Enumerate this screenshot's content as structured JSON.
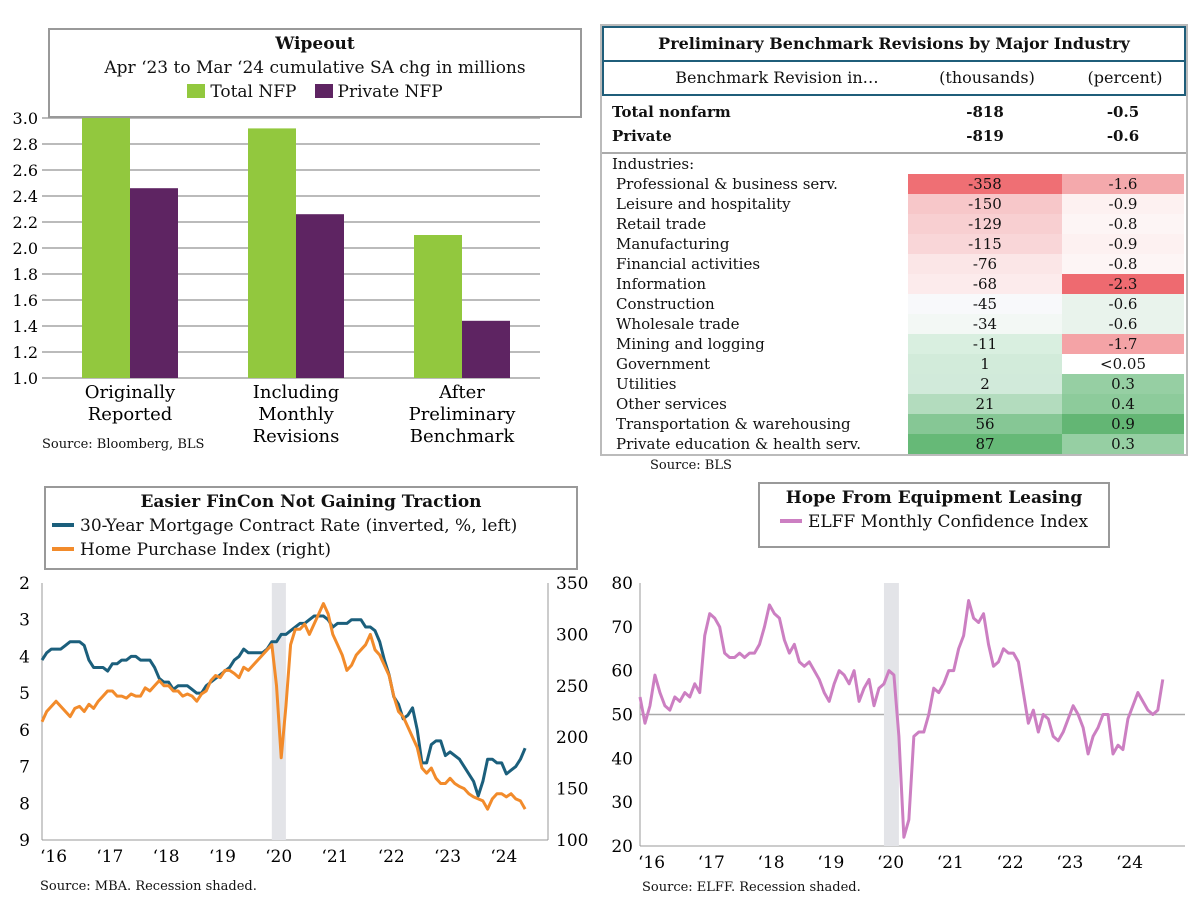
{
  "chart_data": [
    {
      "type": "bar",
      "title": "Wipeout",
      "subtitle": "Apr ‘23 to Mar ‘24 cumulative SA chg in millions",
      "categories": [
        "Originally Reported",
        "Including Monthly Revisions",
        "After Preliminary Benchmark"
      ],
      "series": [
        {
          "name": "Total NFP",
          "color": "#92c83e",
          "values": [
            3.0,
            2.92,
            2.1
          ]
        },
        {
          "name": "Private NFP",
          "color": "#5e2462",
          "values": [
            2.46,
            2.26,
            1.44
          ]
        }
      ],
      "ylim": [
        1.0,
        3.0
      ],
      "yticks": [
        "1.0",
        "1.2",
        "1.4",
        "1.6",
        "1.8",
        "2.0",
        "2.2",
        "2.4",
        "2.6",
        "2.8",
        "3.0"
      ],
      "grid": true,
      "source": "Source: Bloomberg, BLS"
    },
    {
      "type": "table",
      "title": "Preliminary Benchmark Revisions by Major Industry",
      "columns": [
        "Benchmark Revision in…",
        "(thousands)",
        "(percent)"
      ],
      "totals": [
        [
          "Total nonfarm",
          "-818",
          "-0.5"
        ],
        [
          "Private",
          "-819",
          "-0.6"
        ]
      ],
      "section": "Industries:",
      "rows": [
        [
          "Professional & business serv.",
          "-358",
          "-1.6",
          "#ef6f74",
          "#f4a9ac"
        ],
        [
          "Leisure and hospitality",
          "-150",
          "-0.9",
          "#f7c7c9",
          "#fdf1f1"
        ],
        [
          "Retail trade",
          "-129",
          "-0.8",
          "#f8cfd1",
          "#fdf5f5"
        ],
        [
          "Manufacturing",
          "-115",
          "-0.9",
          "#f9d6d8",
          "#fdf1f1"
        ],
        [
          "Financial activities",
          "-76",
          "-0.8",
          "#fbe6e7",
          "#fdf5f5"
        ],
        [
          "Information",
          "-68",
          "-2.3",
          "#fcebec",
          "#ee6a70"
        ],
        [
          "Construction",
          "-45",
          "-0.6",
          "#f8f9fb",
          "#e9f3ec"
        ],
        [
          "Wholesale trade",
          "-34",
          "-0.6",
          "#f3f8f5",
          "#e9f3ec"
        ],
        [
          "Mining and logging",
          "-11",
          "-1.7",
          "#d9efe0",
          "#f4a3a6"
        ],
        [
          "Government",
          "1",
          "<0.05",
          "#d2ebda",
          "#ffffff"
        ],
        [
          "Utilities",
          "2",
          "0.3",
          "#d1eada",
          "#96cfa3"
        ],
        [
          "Other services",
          "21",
          "0.4",
          "#b3dcbe",
          "#8dcb9b"
        ],
        [
          "Transportation & warehousing",
          "56",
          "0.9",
          "#86c795",
          "#63b674"
        ],
        [
          "Private education & health serv.",
          "87",
          "0.3",
          "#66b977",
          "#96cfa3"
        ]
      ],
      "source": "Source: BLS"
    },
    {
      "type": "line",
      "title": "Easier FinCon Not Gaining Traction",
      "start": "2016-01",
      "series": [
        {
          "name": "30-Year Mortgage Contract Rate (inverted, %, left)",
          "color": "#1b5f7c",
          "axis": "left",
          "values": [
            4.1,
            3.9,
            3.8,
            3.8,
            3.8,
            3.7,
            3.6,
            3.6,
            3.6,
            3.7,
            4.1,
            4.3,
            4.3,
            4.3,
            4.4,
            4.2,
            4.2,
            4.1,
            4.1,
            4.0,
            4.0,
            4.1,
            4.1,
            4.1,
            4.3,
            4.6,
            4.7,
            4.7,
            4.9,
            4.8,
            4.8,
            4.8,
            4.9,
            5.0,
            5.0,
            4.8,
            4.7,
            4.6,
            4.5,
            4.4,
            4.3,
            4.1,
            4.0,
            3.8,
            3.9,
            3.9,
            3.9,
            3.9,
            3.8,
            3.6,
            3.6,
            3.4,
            3.4,
            3.3,
            3.2,
            3.1,
            3.1,
            3.0,
            2.9,
            2.9,
            2.9,
            3.0,
            3.2,
            3.1,
            3.1,
            3.1,
            3.0,
            3.0,
            3.0,
            3.2,
            3.2,
            3.3,
            3.6,
            4.1,
            4.5,
            5.1,
            5.3,
            5.7,
            5.6,
            5.4,
            6.0,
            6.9,
            6.9,
            6.4,
            6.3,
            6.3,
            6.7,
            6.6,
            6.7,
            6.8,
            7.0,
            7.2,
            7.4,
            7.8,
            7.4,
            6.8,
            6.8,
            6.9,
            6.9,
            7.2,
            7.1,
            7.0,
            6.8,
            6.5
          ]
        },
        {
          "name": "Home Purchase Index (right)",
          "color": "#f28b2b",
          "axis": "right",
          "values": [
            215,
            225,
            230,
            235,
            230,
            225,
            220,
            228,
            230,
            225,
            232,
            228,
            235,
            240,
            245,
            245,
            240,
            240,
            238,
            242,
            240,
            240,
            248,
            245,
            250,
            255,
            250,
            250,
            245,
            245,
            240,
            242,
            240,
            235,
            242,
            245,
            255,
            260,
            258,
            265,
            265,
            262,
            258,
            268,
            265,
            270,
            275,
            280,
            285,
            290,
            250,
            180,
            230,
            290,
            305,
            305,
            310,
            300,
            310,
            320,
            330,
            320,
            300,
            290,
            280,
            265,
            270,
            280,
            285,
            290,
            300,
            285,
            280,
            270,
            260,
            240,
            225,
            220,
            210,
            200,
            190,
            170,
            165,
            170,
            160,
            155,
            155,
            160,
            155,
            152,
            150,
            145,
            142,
            140,
            138,
            130,
            140,
            145,
            145,
            142,
            145,
            140,
            138,
            130
          ]
        }
      ],
      "left_ylim": [
        2,
        9
      ],
      "left_ticks": [
        "2",
        "3",
        "4",
        "5",
        "6",
        "7",
        "8",
        "9"
      ],
      "right_ylim": [
        100,
        350
      ],
      "right_ticks": [
        "350",
        "300",
        "250",
        "200",
        "150",
        "100"
      ],
      "xticks": [
        "‘16",
        "‘17",
        "‘18",
        "‘19",
        "‘20",
        "‘21",
        "‘22",
        "‘23",
        "‘24"
      ],
      "recession": [
        "2020-02",
        "2020-04"
      ],
      "source": "Source: MBA. Recession shaded."
    },
    {
      "type": "line",
      "title": "Hope From Equipment Leasing",
      "start": "2016-01",
      "series": [
        {
          "name": "ELFF Monthly Confidence Index",
          "color": "#cc7fc2",
          "values": [
            54,
            48,
            52,
            59,
            55,
            52,
            51,
            54,
            53,
            55,
            54,
            57,
            55,
            68,
            73,
            72,
            70,
            64,
            63,
            63,
            64,
            63,
            64,
            64,
            66,
            70,
            75,
            73,
            72,
            67,
            64,
            66,
            62,
            61,
            62,
            60,
            58,
            55,
            53,
            57,
            60,
            59,
            57,
            60,
            53,
            56,
            58,
            52,
            56,
            57,
            60,
            59,
            45,
            22,
            26,
            45,
            46,
            46,
            50,
            56,
            55,
            57,
            60,
            60,
            65,
            68,
            76,
            72,
            71,
            73,
            66,
            61,
            62,
            65,
            64,
            64,
            62,
            55,
            48,
            51,
            46,
            50,
            49,
            45,
            44,
            46,
            49,
            52,
            50,
            47,
            41,
            45,
            47,
            50,
            50,
            41,
            43,
            42,
            49,
            52,
            55,
            53,
            51,
            50,
            51,
            58
          ]
        }
      ],
      "ylim": [
        20,
        80
      ],
      "yticks": [
        "20",
        "30",
        "40",
        "50",
        "60",
        "70",
        "80"
      ],
      "refline": 50,
      "xticks": [
        "‘16",
        "‘17",
        "‘18",
        "‘19",
        "‘20",
        "‘21",
        "‘22",
        "‘23",
        "‘24"
      ],
      "recession": [
        "2020-02",
        "2020-04"
      ],
      "source": "Source: ELFF. Recession shaded."
    }
  ]
}
